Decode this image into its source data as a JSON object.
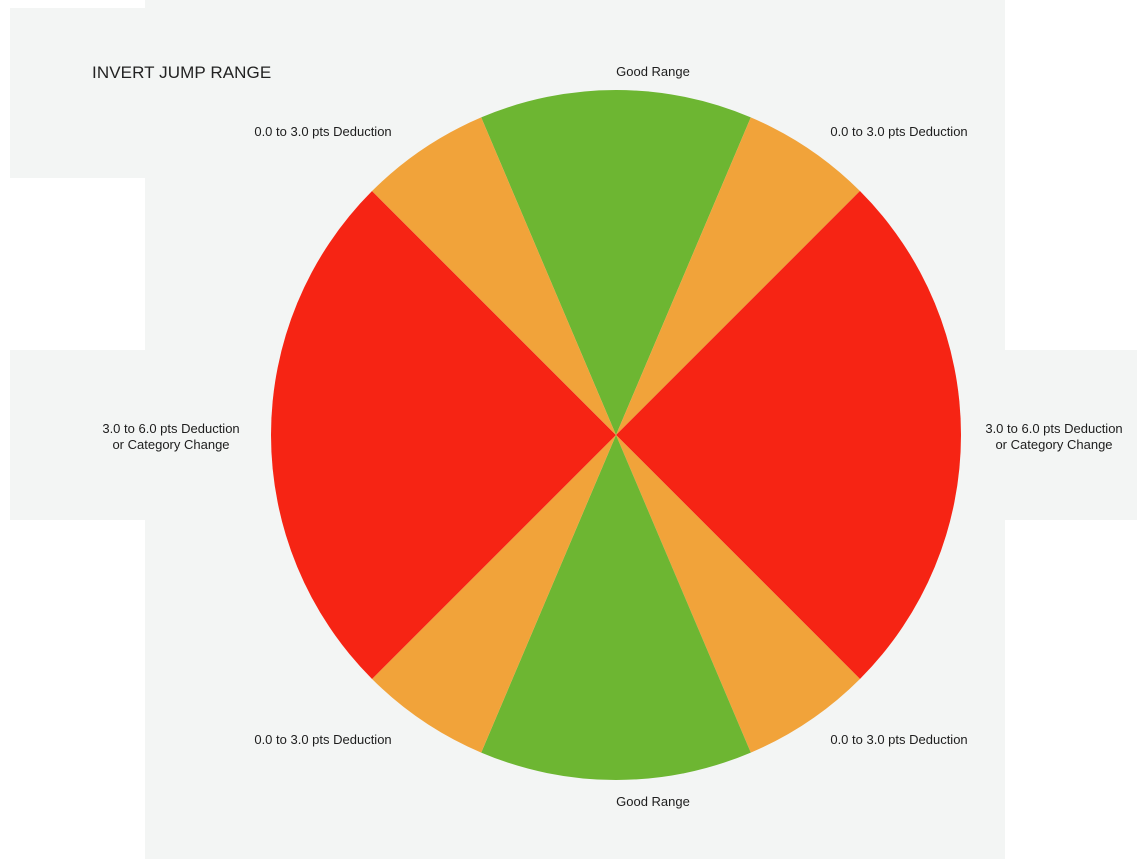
{
  "title": "INVERT JUMP RANGE",
  "colors": {
    "good": "#6db632",
    "minor": "#f1a33a",
    "major": "#f62414"
  },
  "zones": [
    {
      "id": "top-good",
      "kind": "good",
      "label": "Good Range"
    },
    {
      "id": "top-right",
      "kind": "minor",
      "label": "0.0 to 3.0 pts Deduction"
    },
    {
      "id": "right-major",
      "kind": "major",
      "label_line1": "3.0 to 6.0 pts Deduction",
      "label_line2": "or Category Change"
    },
    {
      "id": "bottom-right",
      "kind": "minor",
      "label": "0.0 to 3.0 pts Deduction"
    },
    {
      "id": "bottom-good",
      "kind": "good",
      "label": "Good Range"
    },
    {
      "id": "bottom-left",
      "kind": "minor",
      "label": "0.0 to 3.0 pts Deduction"
    },
    {
      "id": "left-major",
      "kind": "major",
      "label_line1": "3.0 to 6.0 pts Deduction",
      "label_line2": "or Category Change"
    },
    {
      "id": "top-left",
      "kind": "minor",
      "label": "0.0 to 3.0 pts Deduction"
    }
  ]
}
